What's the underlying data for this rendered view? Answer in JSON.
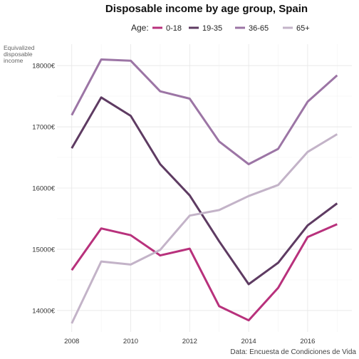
{
  "chart_data": {
    "type": "line",
    "title": "Disposable income by age group, Spain",
    "ylabel_lines": [
      "Equivalized",
      "disposable",
      "income"
    ],
    "caption": "Data: Encuesta de Condiciones de Vida",
    "legend": {
      "title": "Age:",
      "placement": "top"
    },
    "x": [
      2008,
      2009,
      2010,
      2011,
      2012,
      2013,
      2014,
      2015,
      2016,
      2017
    ],
    "x_ticks": [
      2008,
      2010,
      2012,
      2014,
      2016
    ],
    "x_tick_labels": [
      "2008",
      "2010",
      "2012",
      "2014",
      "2016"
    ],
    "xlim": [
      2007.5,
      2017.5
    ],
    "y_ticks": [
      14000,
      15000,
      16000,
      17000,
      18000
    ],
    "y_tick_labels": [
      "14000€",
      "15000€",
      "16000€",
      "17000€",
      "18000€"
    ],
    "ylim": [
      13650,
      18350
    ],
    "grid": true,
    "series": [
      {
        "name": "0-18",
        "color": "#b8317c",
        "values": [
          14660,
          15340,
          15230,
          14900,
          15010,
          14070,
          13840,
          14370,
          15200,
          15410
        ]
      },
      {
        "name": "19-35",
        "color": "#5e3b62",
        "values": [
          16650,
          17480,
          17180,
          16390,
          15880,
          15130,
          14430,
          14780,
          15390,
          15750
        ]
      },
      {
        "name": "36-65",
        "color": "#9c75a5",
        "values": [
          17190,
          18100,
          18080,
          17580,
          17460,
          16760,
          16390,
          16640,
          17410,
          17840
        ]
      },
      {
        "name": "65+",
        "color": "#c3b3c8",
        "values": [
          13790,
          14800,
          14750,
          14990,
          15550,
          15640,
          15870,
          16050,
          16590,
          16880
        ]
      }
    ]
  }
}
